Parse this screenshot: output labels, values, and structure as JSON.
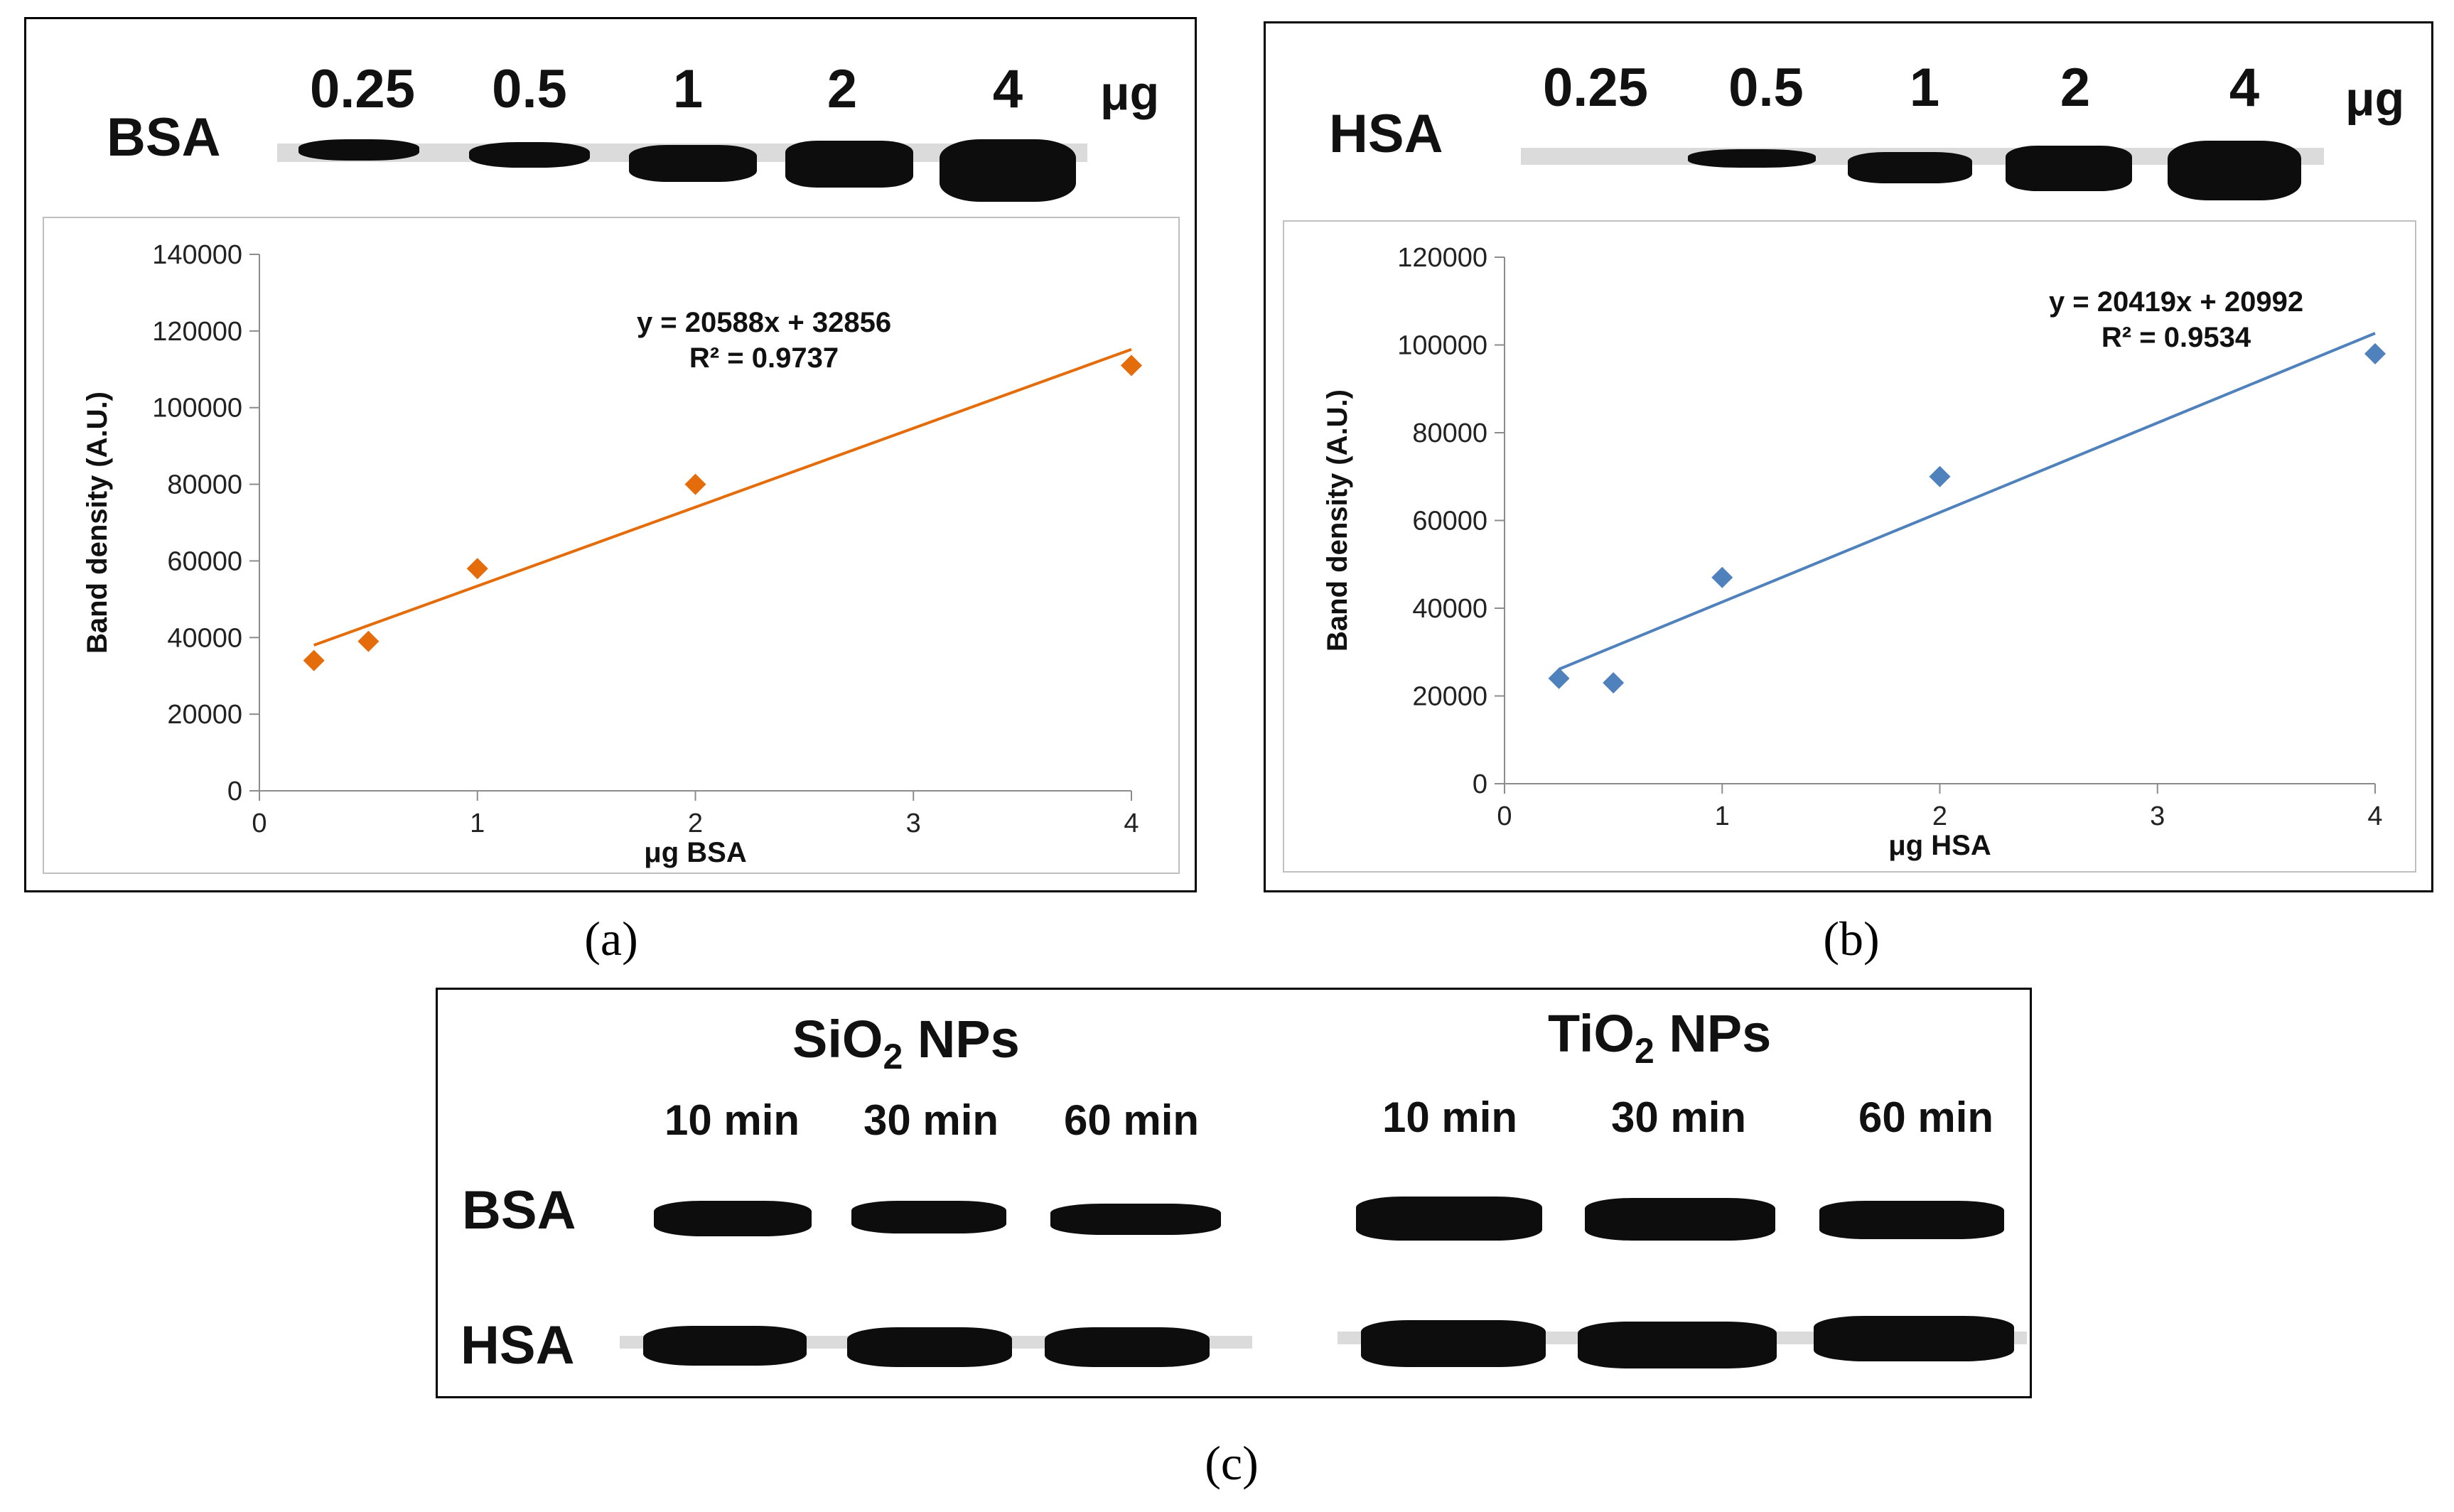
{
  "panel_a": {
    "gel_protein": "BSA",
    "lanes": [
      "0.25",
      "0.5",
      "1",
      "2",
      "4"
    ],
    "unit": "μg",
    "caption": "(a)"
  },
  "panel_b": {
    "gel_protein": "HSA",
    "lanes": [
      "0.25",
      "0.5",
      "1",
      "2",
      "4"
    ],
    "unit": "μg",
    "caption": "(b)"
  },
  "panel_c": {
    "sio2": {
      "pre": "SiO",
      "sub": "2",
      "post": " NPs"
    },
    "tio2": {
      "pre": "TiO",
      "sub": "2",
      "post": " NPs"
    },
    "times": [
      "10 min",
      "30 min",
      "60 min"
    ],
    "rows": [
      "BSA",
      "HSA"
    ],
    "caption": "(c)"
  },
  "colors": {
    "bsa_series": "#E46C0A",
    "hsa_series": "#4F81BD"
  },
  "chart_data": [
    {
      "type": "scatter",
      "title": "",
      "xlabel": "μg BSA",
      "ylabel": "Band density (A.U.)",
      "x": [
        0.25,
        0.5,
        1,
        2,
        4
      ],
      "y": [
        34000,
        39000,
        58000,
        80000,
        111000
      ],
      "xlim": [
        0,
        4
      ],
      "ylim": [
        0,
        140000
      ],
      "xticks": [
        0,
        1,
        2,
        3,
        4
      ],
      "yticks": [
        0,
        20000,
        40000,
        60000,
        80000,
        100000,
        120000,
        140000
      ],
      "trendline": {
        "slope": 20588,
        "intercept": 32856,
        "equation": "y = 20588x + 32856",
        "r2": "R² = 0.9737"
      },
      "marker": "diamond",
      "grid": false
    },
    {
      "type": "scatter",
      "title": "",
      "xlabel": "μg HSA",
      "ylabel": "Band density (A.U.)",
      "x": [
        0.25,
        0.5,
        1,
        2,
        4
      ],
      "y": [
        24000,
        23000,
        47000,
        70000,
        98000
      ],
      "xlim": [
        0,
        4
      ],
      "ylim": [
        0,
        120000
      ],
      "xticks": [
        0,
        1,
        2,
        3,
        4
      ],
      "yticks": [
        0,
        20000,
        40000,
        60000,
        80000,
        100000,
        120000
      ],
      "trendline": {
        "slope": 20419,
        "intercept": 20992,
        "equation": "y = 20419x + 20992",
        "r2": "R² = 0.9534"
      },
      "marker": "diamond",
      "grid": false
    }
  ]
}
